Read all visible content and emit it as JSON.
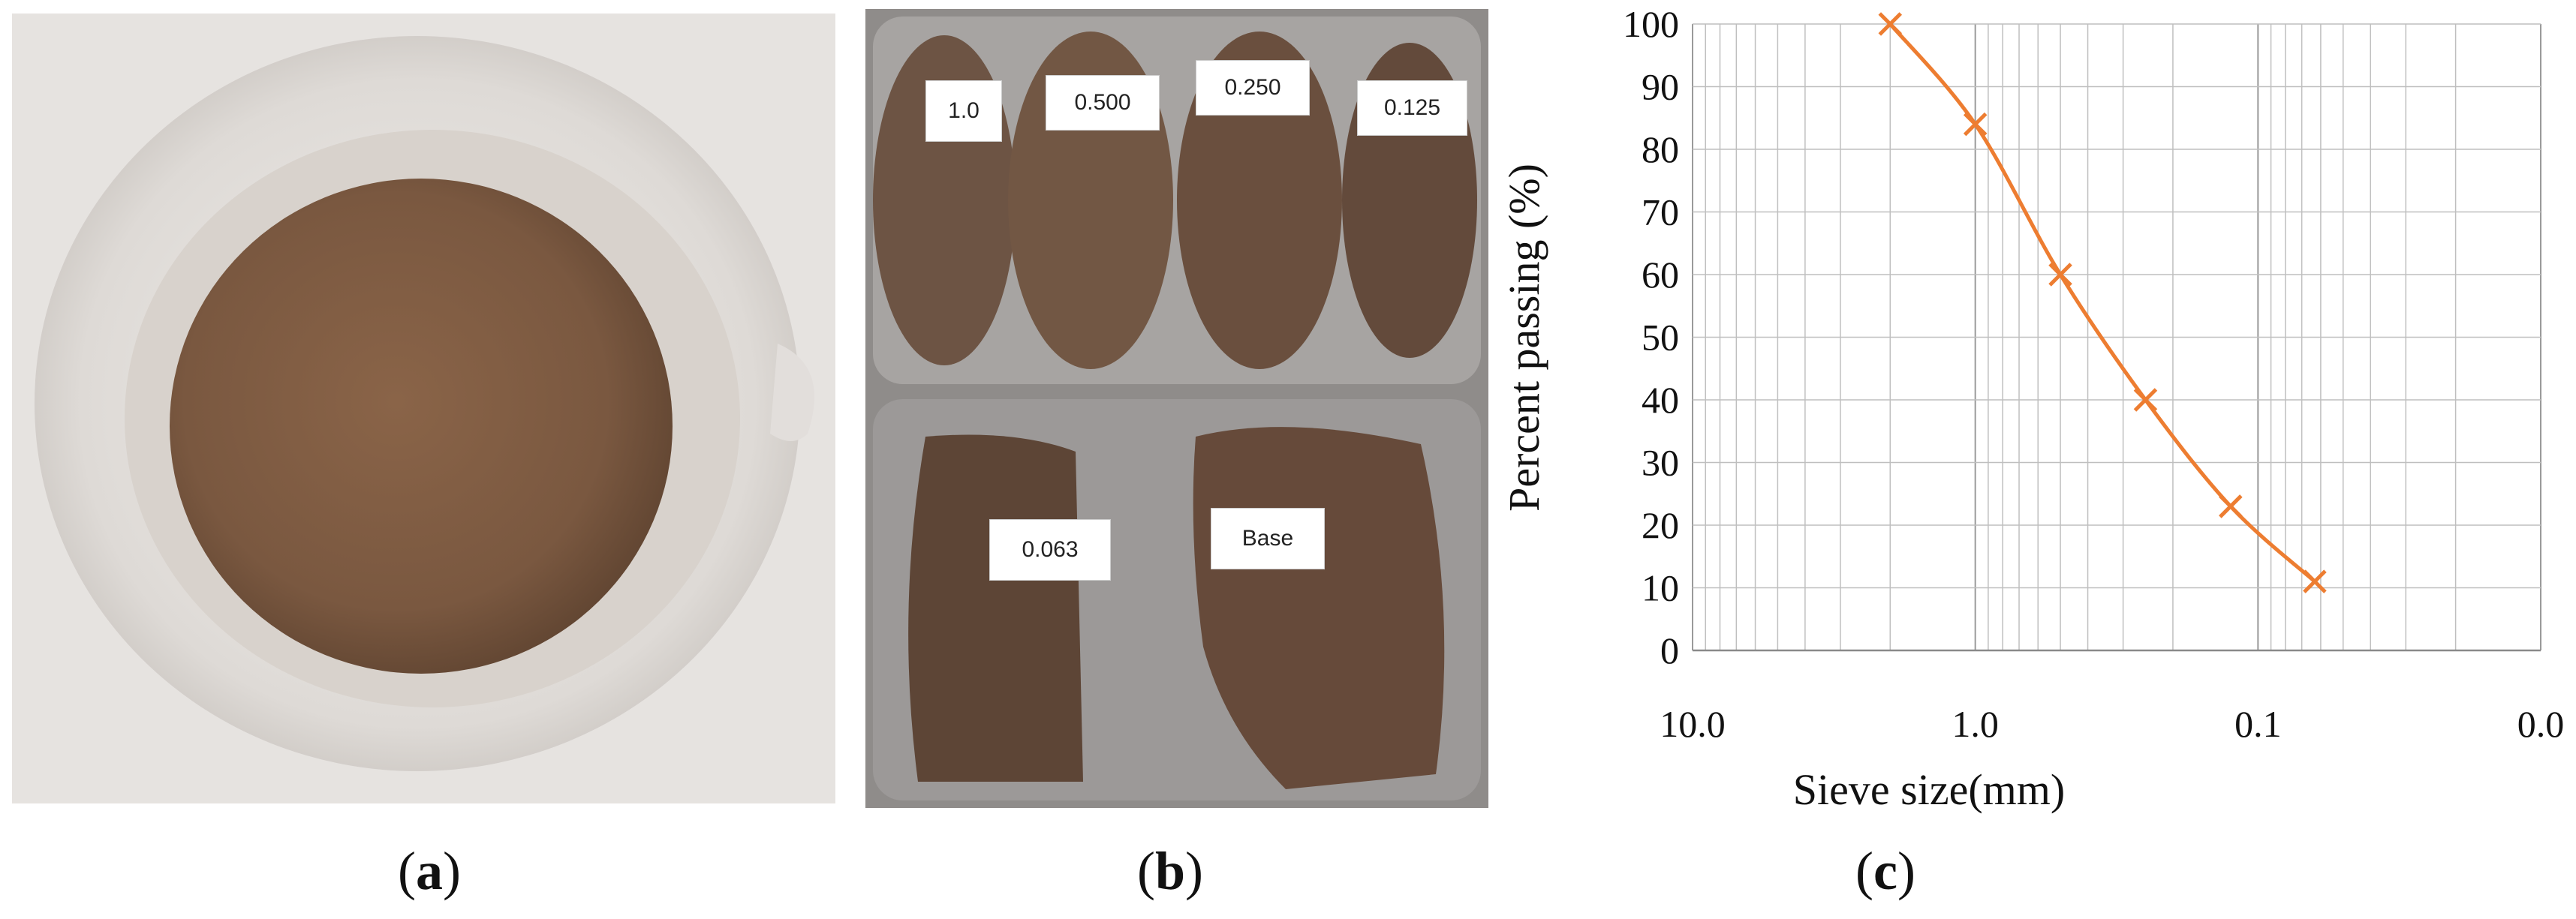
{
  "panels": {
    "a": {
      "label_open": "(",
      "label_letter": "a",
      "label_close": ")"
    },
    "b": {
      "label_open": "(",
      "label_letter": "b",
      "label_close": ")",
      "tags": [
        "1.0",
        "0.500",
        "0.250",
        "0.125",
        "0.063",
        "Base"
      ]
    },
    "c": {
      "label_open": "(",
      "label_letter": "c",
      "label_close": ")"
    }
  },
  "colors": {
    "series": "#ED7D31",
    "grid": "#bfbfbf",
    "soil": "#7a5840"
  },
  "chart_data": {
    "type": "line",
    "title": "",
    "xlabel": "Sieve size(mm)",
    "ylabel": "Percent passing (%)",
    "x_scale": "log",
    "x_reversed": true,
    "xlim": [
      10.0,
      0.01
    ],
    "ylim": [
      0,
      100
    ],
    "x_tick_labels": [
      "10.0",
      "1.0",
      "0.1",
      "0.0"
    ],
    "y_tick_labels": [
      "0",
      "10",
      "20",
      "30",
      "40",
      "50",
      "60",
      "70",
      "80",
      "90",
      "100"
    ],
    "grid": true,
    "marker": "x",
    "series": [
      {
        "x": [
          2.0,
          1.0,
          0.5,
          0.25,
          0.125,
          0.063
        ],
        "values": [
          100,
          84,
          60,
          40,
          23,
          11
        ]
      }
    ]
  }
}
